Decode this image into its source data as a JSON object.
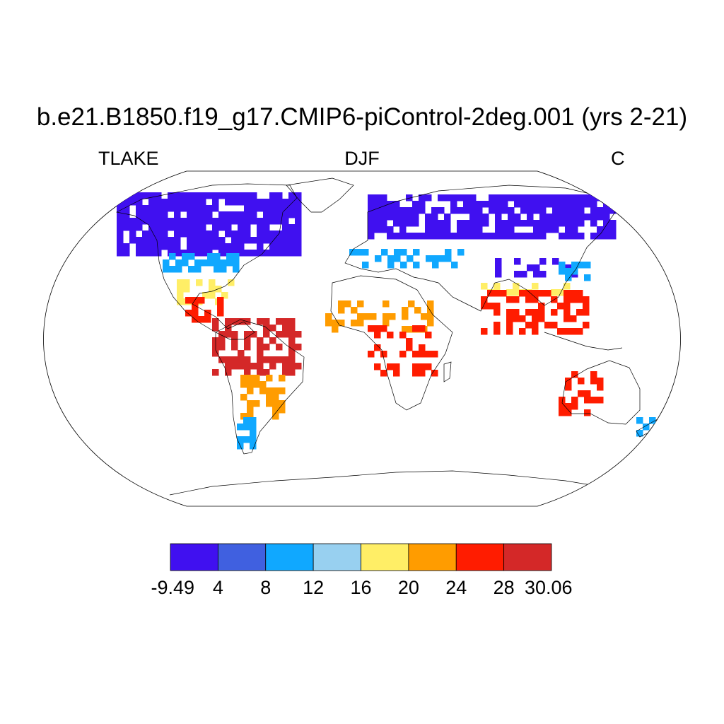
{
  "title": "b.e21.B1850.f19_g17.CMIP6-piControl-2deg.001 (yrs 2-21)",
  "subtitle_left": "TLAKE",
  "subtitle_center": "DJF",
  "subtitle_right": "C",
  "colorbar": {
    "labels": [
      "-9.49",
      "4",
      "8",
      "12",
      "16",
      "20",
      "24",
      "28",
      "30.06"
    ],
    "colors": [
      "#4010f0",
      "#4060e0",
      "#10a8ff",
      "#98d0f0",
      "#ffee66",
      "#ff9c00",
      "#ff1c00",
      "#d42828"
    ]
  }
}
